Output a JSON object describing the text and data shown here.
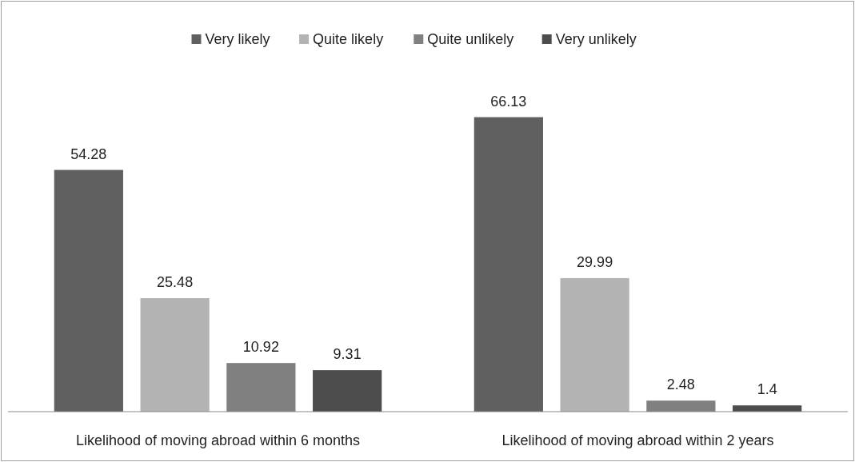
{
  "chart_data": {
    "type": "bar",
    "categories": [
      "Likelihood of moving abroad within 6 months",
      "Likelihood of moving abroad within 2 years"
    ],
    "series": [
      {
        "name": "Very likely",
        "color": "#606060",
        "values": [
          54.28,
          66.13
        ]
      },
      {
        "name": "Quite likely",
        "color": "#b3b3b3",
        "values": [
          25.48,
          29.99
        ]
      },
      {
        "name": "Quite unlikely",
        "color": "#808080",
        "values": [
          10.92,
          2.48
        ]
      },
      {
        "name": "Very unlikely",
        "color": "#4d4d4d",
        "values": [
          9.31,
          1.4
        ]
      }
    ],
    "data_labels": true,
    "legend": "top",
    "grid": false
  }
}
